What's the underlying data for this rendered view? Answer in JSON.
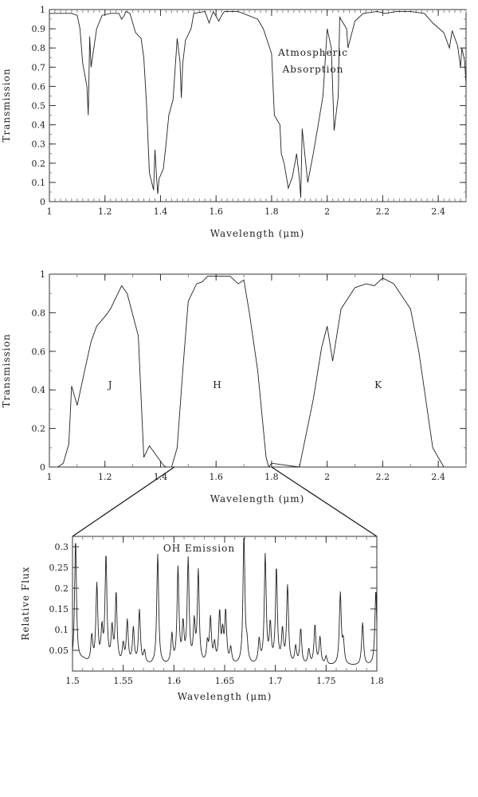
{
  "chart_data": [
    {
      "type": "line",
      "title": "",
      "annotation_lines": [
        "Atmospheric",
        "Absorption"
      ],
      "xlabel": "Wavelength (μm)",
      "ylabel": "Transmission",
      "xlim": [
        1.0,
        2.5
      ],
      "ylim": [
        0,
        1
      ],
      "xticks": [
        1,
        1.2,
        1.4,
        1.6,
        1.8,
        2,
        2.2,
        2.4
      ],
      "xtick_labels": [
        "1",
        "1.2",
        "1.4",
        "1.6",
        "1.8",
        "2",
        "2.2",
        "2.4"
      ],
      "yticks": [
        0,
        0.1,
        0.2,
        0.3,
        0.4,
        0.5,
        0.6,
        0.7,
        0.8,
        0.9,
        1
      ],
      "ytick_labels": [
        "0",
        "0.1",
        "0.2",
        "0.3",
        "0.4",
        "0.5",
        "0.6",
        "0.7",
        "0.8",
        "0.9",
        "1"
      ],
      "grid": false,
      "x": [
        1.0,
        1.08,
        1.1,
        1.11,
        1.12,
        1.135,
        1.14,
        1.145,
        1.15,
        1.16,
        1.17,
        1.19,
        1.22,
        1.25,
        1.26,
        1.27,
        1.275,
        1.29,
        1.31,
        1.33,
        1.34,
        1.35,
        1.36,
        1.375,
        1.38,
        1.385,
        1.39,
        1.395,
        1.41,
        1.42,
        1.43,
        1.445,
        1.46,
        1.47,
        1.475,
        1.48,
        1.49,
        1.51,
        1.52,
        1.56,
        1.575,
        1.59,
        1.61,
        1.62,
        1.63,
        1.68,
        1.75,
        1.77,
        1.8,
        1.81,
        1.83,
        1.835,
        1.845,
        1.86,
        1.875,
        1.89,
        1.9,
        1.905,
        1.91,
        1.93,
        1.95,
        1.97,
        1.985,
        2.0,
        2.015,
        2.025,
        2.04,
        2.045,
        2.07,
        2.075,
        2.1,
        2.13,
        2.18,
        2.21,
        2.25,
        2.3,
        2.35,
        2.38,
        2.42,
        2.44,
        2.45,
        2.47,
        2.48,
        2.485,
        2.495,
        2.5
      ],
      "y": [
        0.98,
        0.98,
        0.97,
        0.9,
        0.72,
        0.6,
        0.45,
        0.86,
        0.7,
        0.8,
        0.9,
        0.97,
        0.98,
        0.98,
        0.95,
        0.97,
        0.99,
        0.98,
        0.88,
        0.85,
        0.75,
        0.5,
        0.15,
        0.06,
        0.27,
        0.15,
        0.04,
        0.12,
        0.17,
        0.3,
        0.45,
        0.53,
        0.85,
        0.73,
        0.54,
        0.72,
        0.84,
        0.9,
        0.98,
        0.99,
        0.93,
        0.99,
        0.94,
        0.97,
        0.99,
        0.99,
        0.95,
        0.9,
        0.77,
        0.45,
        0.4,
        0.25,
        0.2,
        0.07,
        0.13,
        0.25,
        0.12,
        0.02,
        0.38,
        0.1,
        0.25,
        0.42,
        0.55,
        0.9,
        0.8,
        0.37,
        0.55,
        0.96,
        0.9,
        0.8,
        0.94,
        0.98,
        0.99,
        0.98,
        0.99,
        0.99,
        0.98,
        0.93,
        0.88,
        0.8,
        0.89,
        0.81,
        0.7,
        0.8,
        0.73,
        0.61
      ]
    },
    {
      "type": "line",
      "title": "",
      "xlabel": "Wavelength (μm)",
      "ylabel": "Transmission",
      "xlim": [
        1.0,
        2.5
      ],
      "ylim": [
        0,
        1
      ],
      "xticks": [
        1,
        1.2,
        1.4,
        1.6,
        1.8,
        2,
        2.2,
        2.4
      ],
      "xtick_labels": [
        "1",
        "1.2",
        "1.4",
        "1.6",
        "1.8",
        "2",
        "2.2",
        "2.4"
      ],
      "yticks": [
        0,
        0.2,
        0.4,
        0.6,
        0.8,
        1
      ],
      "ytick_labels": [
        "0",
        "0.2",
        "0.4",
        "0.6",
        "0.8",
        "1"
      ],
      "grid": false,
      "band_labels": [
        {
          "text": "J",
          "x": 1.22,
          "y": 0.43
        },
        {
          "text": "H",
          "x": 1.605,
          "y": 0.43
        },
        {
          "text": "K",
          "x": 2.185,
          "y": 0.43
        }
      ],
      "series": [
        {
          "name": "J",
          "x": [
            1.03,
            1.05,
            1.07,
            1.08,
            1.1,
            1.13,
            1.15,
            1.17,
            1.2,
            1.22,
            1.26,
            1.28,
            1.32,
            1.34,
            1.36,
            1.39,
            1.41,
            1.42
          ],
          "y": [
            0,
            0.02,
            0.12,
            0.42,
            0.32,
            0.52,
            0.65,
            0.73,
            0.78,
            0.82,
            0.94,
            0.9,
            0.68,
            0.05,
            0.11,
            0.05,
            0.01,
            0
          ]
        },
        {
          "name": "H",
          "x": [
            1.44,
            1.46,
            1.48,
            1.5,
            1.53,
            1.55,
            1.57,
            1.65,
            1.68,
            1.7,
            1.72,
            1.75,
            1.78,
            1.79
          ],
          "y": [
            0,
            0.1,
            0.5,
            0.86,
            0.95,
            0.96,
            0.99,
            0.99,
            0.95,
            0.97,
            0.8,
            0.5,
            0.05,
            0
          ],
          "zoom_start": 1.45
        },
        {
          "name": "K",
          "x": [
            1.79,
            1.8,
            1.9,
            1.95,
            1.98,
            2.0,
            2.02,
            2.05,
            2.1,
            2.14,
            2.17,
            2.2,
            2.24,
            2.3,
            2.33,
            2.38,
            2.42
          ],
          "y": [
            0,
            0.02,
            0,
            0.35,
            0.62,
            0.73,
            0.55,
            0.82,
            0.93,
            0.95,
            0.94,
            0.98,
            0.95,
            0.82,
            0.6,
            0.1,
            0
          ]
        }
      ],
      "zoom_range": [
        1.45,
        1.8
      ]
    },
    {
      "type": "line",
      "title": "",
      "annotation": "OH Emission",
      "xlabel": "Wavelength (μm)",
      "ylabel": "Relative Flux",
      "xlim": [
        1.5,
        1.8
      ],
      "ylim": [
        0,
        0.325
      ],
      "xticks": [
        1.5,
        1.55,
        1.6,
        1.65,
        1.7,
        1.75,
        1.8
      ],
      "xtick_labels": [
        "1.5",
        "1.55",
        "1.6",
        "1.65",
        "1.7",
        "1.75",
        "1.8"
      ],
      "yticks": [
        0.05,
        0.1,
        0.15,
        0.2,
        0.25,
        0.3
      ],
      "ytick_labels": [
        "0.05",
        "0.1",
        "0.15",
        "0.2",
        "0.25",
        "0.3"
      ],
      "grid": false,
      "baseline": 0.012,
      "peaks": [
        [
          1.503,
          0.31
        ],
        [
          1.519,
          0.075
        ],
        [
          1.524,
          0.2
        ],
        [
          1.529,
          0.087
        ],
        [
          1.533,
          0.268
        ],
        [
          1.539,
          0.092
        ],
        [
          1.543,
          0.178
        ],
        [
          1.55,
          0.055
        ],
        [
          1.554,
          0.113
        ],
        [
          1.56,
          0.095
        ],
        [
          1.566,
          0.14
        ],
        [
          1.571,
          0.04
        ],
        [
          1.584,
          0.277
        ],
        [
          1.598,
          0.08
        ],
        [
          1.604,
          0.24
        ],
        [
          1.609,
          0.1
        ],
        [
          1.614,
          0.26
        ],
        [
          1.62,
          0.104
        ],
        [
          1.624,
          0.232
        ],
        [
          1.633,
          0.057
        ],
        [
          1.636,
          0.117
        ],
        [
          1.64,
          0.055
        ],
        [
          1.645,
          0.13
        ],
        [
          1.648,
          0.078
        ],
        [
          1.651,
          0.133
        ],
        [
          1.656,
          0.047
        ],
        [
          1.669,
          0.32
        ],
        [
          1.672,
          0.05
        ],
        [
          1.684,
          0.067
        ],
        [
          1.69,
          0.272
        ],
        [
          1.695,
          0.1
        ],
        [
          1.701,
          0.24
        ],
        [
          1.707,
          0.088
        ],
        [
          1.712,
          0.198
        ],
        [
          1.72,
          0.052
        ],
        [
          1.725,
          0.095
        ],
        [
          1.733,
          0.046
        ],
        [
          1.739,
          0.105
        ],
        [
          1.744,
          0.075
        ],
        [
          1.75,
          0.03
        ],
        [
          1.764,
          0.182
        ],
        [
          1.767,
          0.062
        ],
        [
          1.786,
          0.113
        ],
        [
          1.799,
          0.192
        ]
      ]
    }
  ]
}
